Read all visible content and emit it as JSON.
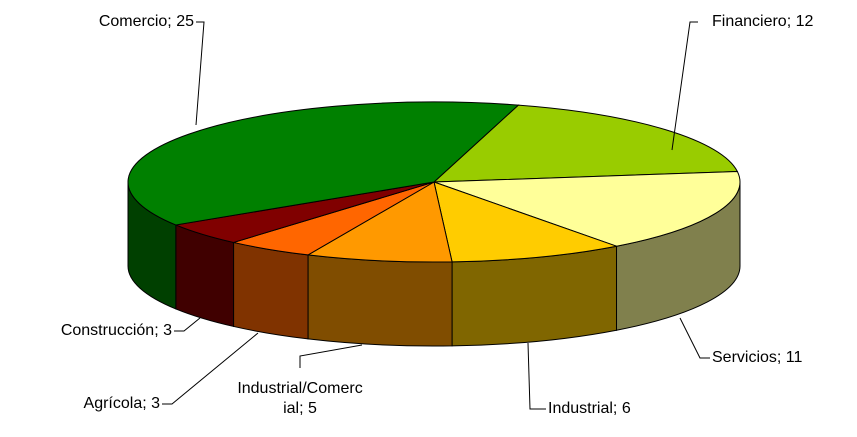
{
  "chart_data": {
    "type": "pie",
    "values": [
      12,
      11,
      6,
      5,
      3,
      3,
      25
    ],
    "value_labels": [
      "Financiero; 12",
      "Servicios; 11",
      "Industrial; 6",
      "Industrial/Comercial; 5",
      "Agrícola; 3",
      "Construcción; 3",
      "Comercio; 25"
    ],
    "colors": [
      "#99cc00",
      "#ffff99",
      "#ffcc00",
      "#ff9900",
      "#ff6600",
      "#800000",
      "#008000"
    ]
  }
}
